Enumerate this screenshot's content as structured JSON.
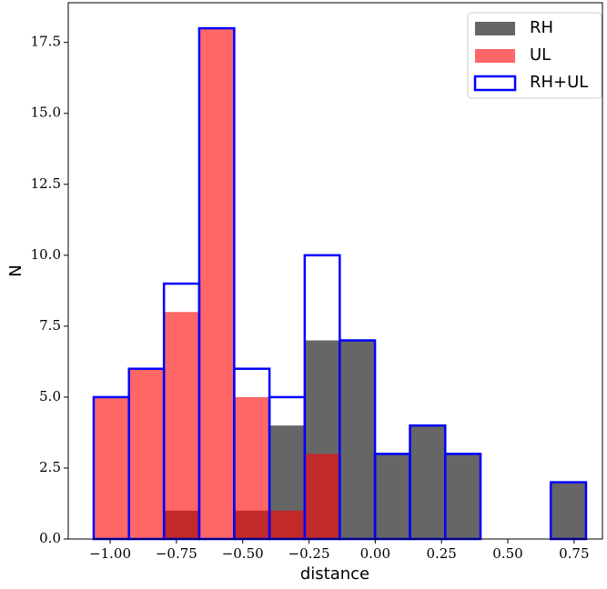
{
  "chart_data": {
    "type": "histogram",
    "x_label": "distance",
    "y_label": "N",
    "bins": [
      -1.062,
      -0.929,
      -0.797,
      -0.664,
      -0.532,
      -0.399,
      -0.266,
      -0.134,
      -0.001,
      0.131,
      0.264,
      0.397,
      0.529,
      0.662,
      0.795
    ],
    "series": [
      {
        "name": "RH",
        "color": "#000000",
        "alpha": 0.6,
        "histtype": "bar",
        "values": [
          0,
          0,
          1,
          0,
          1,
          4,
          7,
          7,
          3,
          4,
          3,
          0,
          0,
          2
        ]
      },
      {
        "name": "UL",
        "color": "#ff0000",
        "alpha": 0.6,
        "histtype": "bar",
        "values": [
          5,
          6,
          8,
          18,
          5,
          1,
          3,
          0,
          0,
          0,
          0,
          0,
          0,
          0
        ]
      },
      {
        "name": "RH+UL",
        "color": "#0000ff",
        "histtype": "step",
        "values": [
          5,
          6,
          9,
          18,
          6,
          5,
          10,
          7,
          3,
          4,
          3,
          0,
          0,
          2
        ]
      }
    ],
    "xlim": [
      -1.158,
      0.857
    ],
    "ylim": [
      0,
      18.9
    ],
    "xticks": [
      {
        "value": -1,
        "label": "−1.00"
      },
      {
        "value": -0.75,
        "label": "−0.75"
      },
      {
        "value": -0.5,
        "label": "−0.50"
      },
      {
        "value": -0.25,
        "label": "−0.25"
      },
      {
        "value": 0,
        "label": "0.00"
      },
      {
        "value": 0.25,
        "label": "0.25"
      },
      {
        "value": 0.5,
        "label": "0.50"
      },
      {
        "value": 0.75,
        "label": "0.75"
      }
    ],
    "yticks": [
      {
        "value": 0,
        "label": "0.0"
      },
      {
        "value": 2.5,
        "label": "2.5"
      },
      {
        "value": 5,
        "label": "5.0"
      },
      {
        "value": 7.5,
        "label": "7.5"
      },
      {
        "value": 10,
        "label": "10.0"
      },
      {
        "value": 12.5,
        "label": "12.5"
      },
      {
        "value": 15,
        "label": "15.0"
      },
      {
        "value": 17.5,
        "label": "17.5"
      }
    ],
    "legend": "upper right"
  }
}
